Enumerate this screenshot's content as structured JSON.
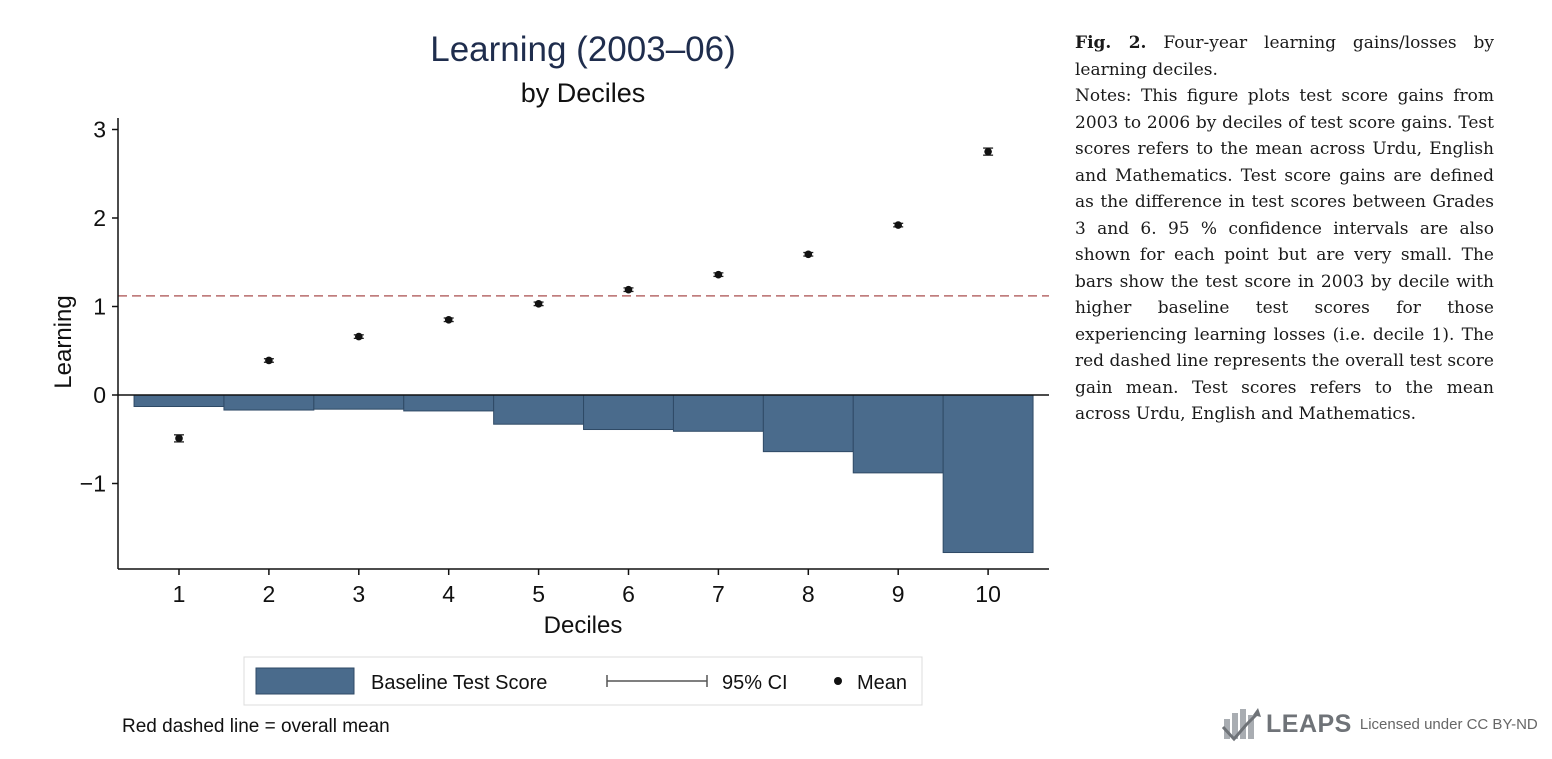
{
  "figure": {
    "caption_label": "Fig. 2.",
    "caption_title": " Four-year learning gains/losses by learning deciles.",
    "notes": "Notes: This figure plots test score gains from 2003 to 2006 by deciles of test score gains. Test scores refers to the mean across Urdu, English and Mathematics. Test score gains are defined as the difference in test scores between Grades 3 and 6. 95 % confidence intervals are also shown for each point but are very small. The bars show the test score in 2003 by decile with higher baseline test scores for those experiencing learning losses (i.e. decile 1). The red dashed line represents the overall test score gain mean. Test scores refers to the mean across Urdu, English and Mathematics.",
    "footnote": "Red dashed line = overall mean",
    "logo_text": "LEAPS",
    "license_text": "Licensed under CC BY-ND"
  },
  "chart_data": {
    "type": "bar",
    "title": "Learning (2003–06)",
    "subtitle": "by Deciles",
    "xlabel": "Deciles",
    "ylabel": "Learning",
    "categories": [
      "1",
      "2",
      "3",
      "4",
      "5",
      "6",
      "7",
      "8",
      "9",
      "10"
    ],
    "x": [
      1,
      2,
      3,
      4,
      5,
      6,
      7,
      8,
      9,
      10
    ],
    "ylim": [
      -2,
      3.2
    ],
    "yticks": [
      -1,
      0,
      1,
      2,
      3
    ],
    "ytick_labels": [
      "−1",
      "0",
      "1",
      "2",
      "3"
    ],
    "series": [
      {
        "name": "Baseline Test Score",
        "kind": "bar",
        "values": [
          -0.13,
          -0.17,
          -0.16,
          -0.18,
          -0.33,
          -0.39,
          -0.41,
          -0.64,
          -0.88,
          -1.78
        ]
      },
      {
        "name": "Mean",
        "kind": "scatter",
        "values": [
          -0.49,
          0.39,
          0.66,
          0.85,
          1.03,
          1.19,
          1.36,
          1.59,
          1.92,
          2.75
        ],
        "ci_low": [
          -0.53,
          0.37,
          0.64,
          0.83,
          1.01,
          1.17,
          1.34,
          1.57,
          1.9,
          2.71
        ],
        "ci_high": [
          -0.45,
          0.41,
          0.68,
          0.87,
          1.05,
          1.21,
          1.38,
          1.61,
          1.94,
          2.79
        ]
      }
    ],
    "overall_mean": 1.12,
    "legend": {
      "placement": "bottom",
      "items": [
        {
          "label": "Baseline Test Score",
          "kind": "bar"
        },
        {
          "label": "95% CI",
          "kind": "ci"
        },
        {
          "label": "Mean",
          "kind": "marker"
        }
      ]
    },
    "colors": {
      "bar_fill": "#4a6b8c",
      "bar_stroke": "#2f4a66",
      "mean_line": "#b86b6b",
      "marker": "#111111",
      "title": "#1f2d4d",
      "axis": "#111111"
    },
    "grid": false
  }
}
